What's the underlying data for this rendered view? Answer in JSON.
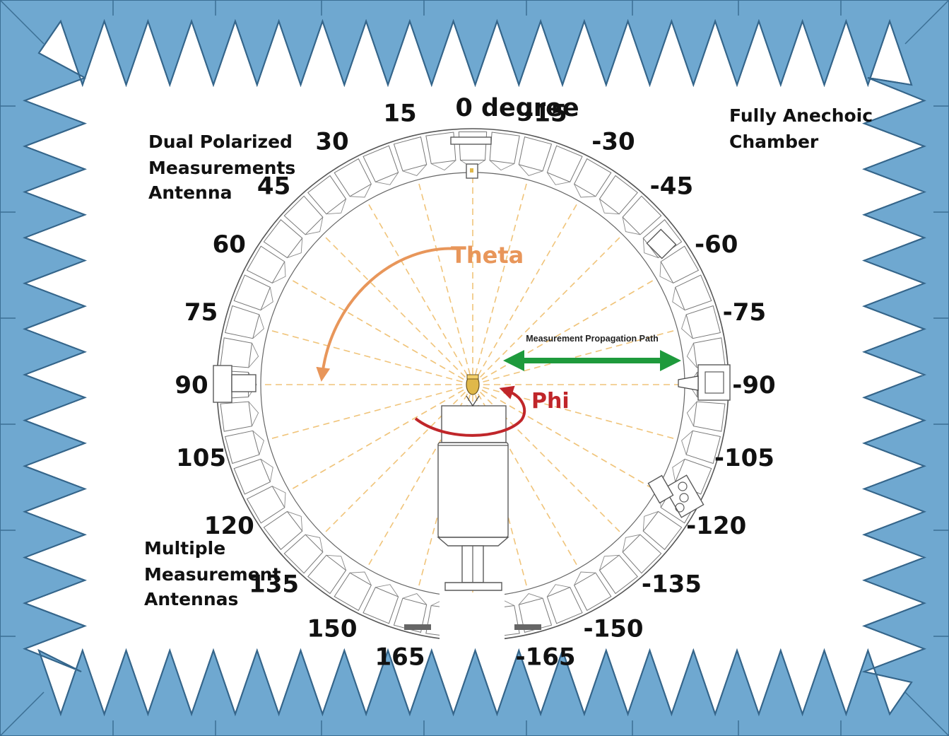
{
  "colors": {
    "absorber": "#6fa8d0",
    "absorber_edge": "#3c6f94",
    "ray": "#f0c47a",
    "theta": "#e8965a",
    "phi": "#c0262a",
    "path": "#1e9a3c"
  },
  "labels": {
    "zero_degree": "0 degree",
    "chamber": [
      "Fully Anechoic",
      "Chamber"
    ],
    "dual_antenna": [
      "Dual Polarized",
      "Measurements",
      "Antenna"
    ],
    "multi_antenna": [
      "Multiple",
      "Measurement",
      "Antennas"
    ],
    "theta": "Theta",
    "phi": "Phi",
    "propagation_path": "Measurement Propagation Path"
  },
  "angles": [
    {
      "text": "15",
      "deg": 15
    },
    {
      "text": "-15",
      "deg": -15
    },
    {
      "text": "30",
      "deg": 30
    },
    {
      "text": "-30",
      "deg": -30
    },
    {
      "text": "45",
      "deg": 45
    },
    {
      "text": "-45",
      "deg": -45
    },
    {
      "text": "60",
      "deg": 60
    },
    {
      "text": "-60",
      "deg": -60
    },
    {
      "text": "75",
      "deg": 75
    },
    {
      "text": "-75",
      "deg": -75
    },
    {
      "text": "90",
      "deg": 90
    },
    {
      "text": "-90",
      "deg": -90
    },
    {
      "text": "105",
      "deg": 105
    },
    {
      "text": "-105",
      "deg": -105
    },
    {
      "text": "120",
      "deg": 120
    },
    {
      "text": "-120",
      "deg": -120
    },
    {
      "text": "135",
      "deg": 135
    },
    {
      "text": "-135",
      "deg": -135
    },
    {
      "text": "150",
      "deg": 150
    },
    {
      "text": "-150",
      "deg": -150
    },
    {
      "text": "165",
      "deg": 165
    },
    {
      "text": "-165",
      "deg": -165
    }
  ]
}
